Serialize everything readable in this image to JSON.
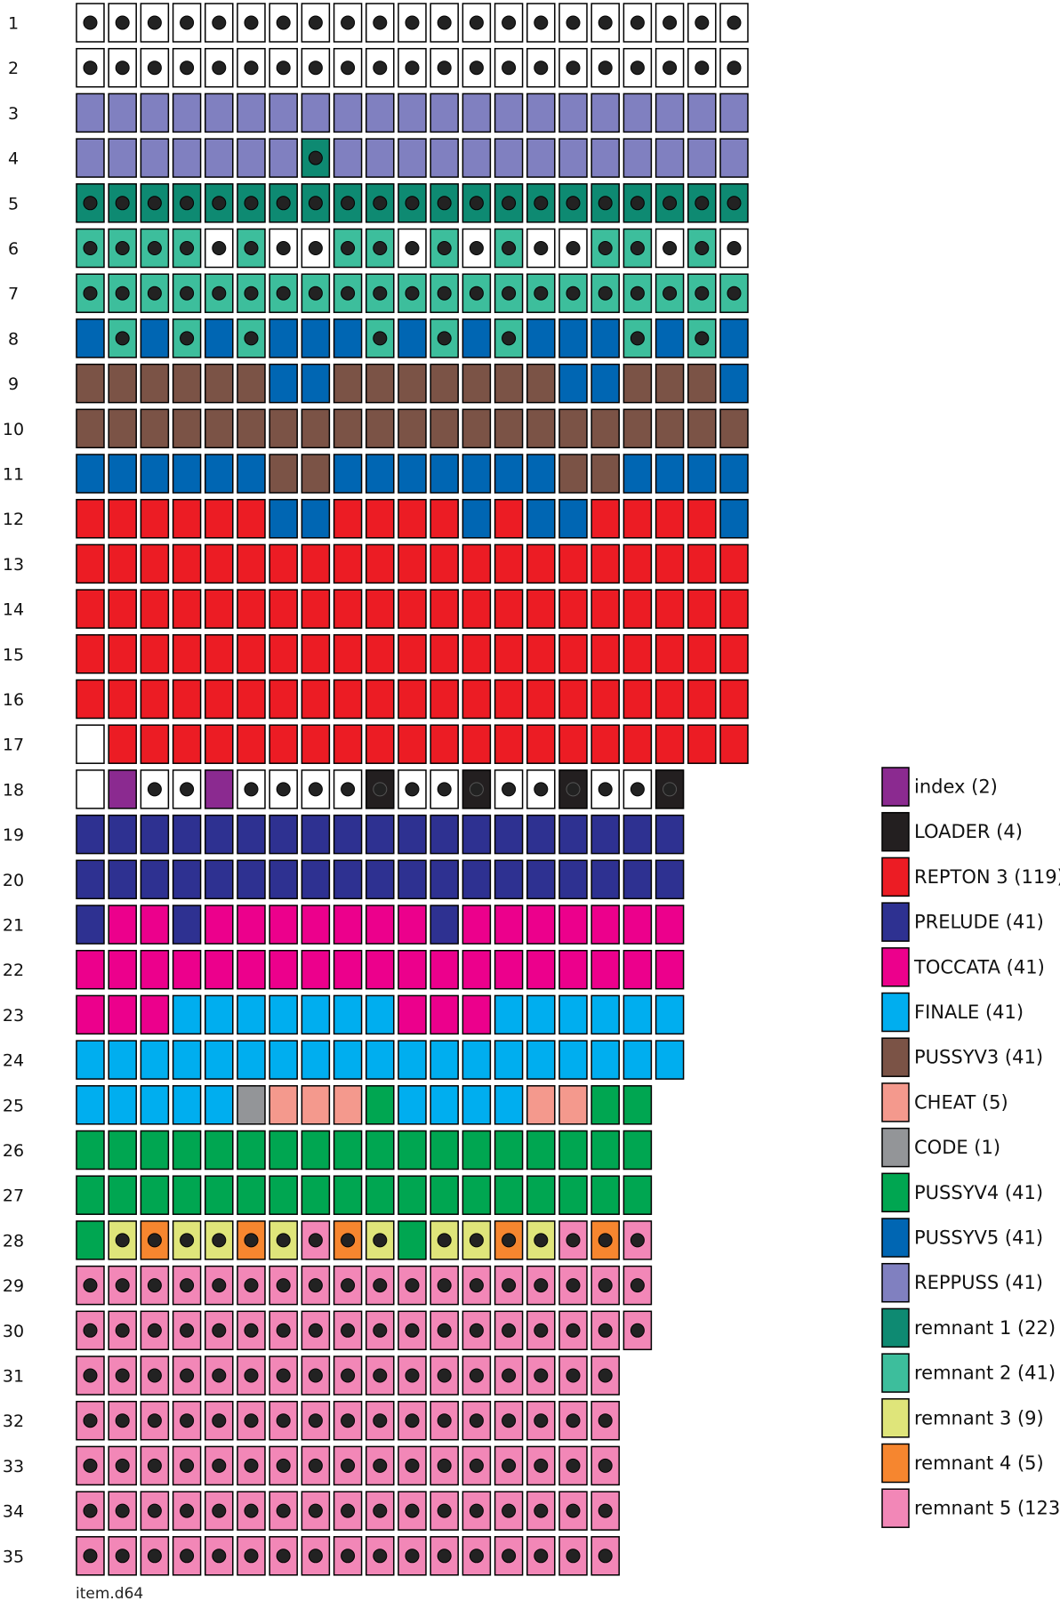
{
  "caption": "item.d64",
  "legend": [
    {
      "label": "index (2)",
      "color": "#8B2A90"
    },
    {
      "label": "LOADER (4)",
      "color": "#231F20"
    },
    {
      "label": "REPTON 3 (119)",
      "color": "#EC1C24"
    },
    {
      "label": "PRELUDE (41)",
      "color": "#2E3191"
    },
    {
      "label": "TOCCATA (41)",
      "color": "#EC008C"
    },
    {
      "label": "FINALE (41)",
      "color": "#00AEEF"
    },
    {
      "label": "PUSSYV3 (41)",
      "color": "#7B5346"
    },
    {
      "label": "CHEAT (5)",
      "color": "#F4998D"
    },
    {
      "label": "CODE (1)",
      "color": "#939598"
    },
    {
      "label": "PUSSYV4 (41)",
      "color": "#00A651"
    },
    {
      "label": "PUSSYV5 (41)",
      "color": "#0066B3"
    },
    {
      "label": "REPPUSS (41)",
      "color": "#8080C0"
    },
    {
      "label": "remnant 1 (22)",
      "color": "#0E8A72"
    },
    {
      "label": "remnant 2 (41)",
      "color": "#3DBE9C"
    },
    {
      "label": "remnant 3 (9)",
      "color": "#DFE57A"
    },
    {
      "label": "remnant 4 (5)",
      "color": "#F6862F"
    },
    {
      "label": "remnant 5 (123)",
      "color": "#F287B7"
    }
  ],
  "color_codes": {
    "W": "#FFFFFF",
    "i": "#8B2A90",
    "L": "#231F20",
    "R": "#EC1C24",
    "P": "#2E3191",
    "T": "#EC008C",
    "F": "#00AEEF",
    "3": "#7B5346",
    "C": "#F4998D",
    "D": "#939598",
    "4": "#00A651",
    "5": "#0066B3",
    "Q": "#8080C0",
    "a": "#0E8A72",
    "b": "#3DBE9C",
    "c": "#DFE57A",
    "d": "#F6862F",
    "e": "#F287B7"
  },
  "tracks": [
    {
      "track": "1",
      "sectors": "WWWWWWWWWWWWWWWWWWWWW",
      "dots": "111111111111111111111"
    },
    {
      "track": "2",
      "sectors": "WWWWWWWWWWWWWWWWWWWWW",
      "dots": "111111111111111111111"
    },
    {
      "track": "3",
      "sectors": "QQQQQQQQQQQQQQQQQQQQQ",
      "dots": "000000000000000000000"
    },
    {
      "track": "4",
      "sectors": "QQQQQQQaQQQQQQQQQQQQQ",
      "dots": "000000010000000000000"
    },
    {
      "track": "5",
      "sectors": "aaaaaaaaaaaaaaaaaaaaa",
      "dots": "111111111111111111111"
    },
    {
      "track": "6",
      "sectors": "bbbbWbWWbbWbWbWWbbWbW",
      "dots": "111111111111111111111"
    },
    {
      "track": "7",
      "sectors": "bbbbbbbbbbbbbbbbbbbbb",
      "dots": "111111111111111111111"
    },
    {
      "track": "8",
      "sectors": "5b5b5b555b5b5b555b5b5",
      "dots": "010101000101010001010"
    },
    {
      "track": "9",
      "sectors": "333333553333333553335",
      "dots": "000000000000000000000"
    },
    {
      "track": "10",
      "sectors": "333333333333333333333",
      "dots": "000000000000000000000"
    },
    {
      "track": "11",
      "sectors": "555555335555555335555",
      "dots": "000000000000000000000"
    },
    {
      "track": "12",
      "sectors": "RRRRRR55RRRR5R55RRRR5",
      "dots": "000000000000000000000"
    },
    {
      "track": "13",
      "sectors": "RRRRRRRRRRRRRRRRRRRRR",
      "dots": "000000000000000000000"
    },
    {
      "track": "14",
      "sectors": "RRRRRRRRRRRRRRRRRRRRR",
      "dots": "000000000000000000000"
    },
    {
      "track": "15",
      "sectors": "RRRRRRRRRRRRRRRRRRRRR",
      "dots": "000000000000000000000"
    },
    {
      "track": "16",
      "sectors": "RRRRRRRRRRRRRRRRRRRRR",
      "dots": "000000000000000000000"
    },
    {
      "track": "17",
      "sectors": "WRRRRRRRRRRRRRRRRRRRR",
      "dots": "000000000000000000000"
    },
    {
      "track": "18",
      "sectors": "WiWWiWWWWLWWLWWLWWL",
      "dots": "0011011112112112112"
    },
    {
      "track": "19",
      "sectors": "PPPPPPPPPPPPPPPPPPP",
      "dots": "0000000000000000000"
    },
    {
      "track": "20",
      "sectors": "PPPPPPPPPPPPPPPPPPP",
      "dots": "0000000000000000000"
    },
    {
      "track": "21",
      "sectors": "PTTPTTTTTTTPTTTTTTT",
      "dots": "0000000000000000000"
    },
    {
      "track": "22",
      "sectors": "TTTTTTTTTTTTTTTTTTT",
      "dots": "0000000000000000000"
    },
    {
      "track": "23",
      "sectors": "TTTFFFFFFFTTTFFFFFF",
      "dots": "0000000000000000000"
    },
    {
      "track": "24",
      "sectors": "FFFFFFFFFFFFFFFFFFF",
      "dots": "0000000000000000000"
    },
    {
      "track": "25",
      "sectors": "FFFFFDCCC4FFFFCC44",
      "dots": "000000000000000000"
    },
    {
      "track": "26",
      "sectors": "444444444444444444",
      "dots": "000000000000000000"
    },
    {
      "track": "27",
      "sectors": "444444444444444444",
      "dots": "000000000000000000"
    },
    {
      "track": "28",
      "sectors": "4cdccdcedc4ccdcede",
      "dots": "011111111101111111"
    },
    {
      "track": "29",
      "sectors": "eeeeeeeeeeeeeeeeee",
      "dots": "111111111111111111"
    },
    {
      "track": "30",
      "sectors": "eeeeeeeeeeeeeeeeee",
      "dots": "111111111111111111"
    },
    {
      "track": "31",
      "sectors": "eeeeeeeeeeeeeeeee",
      "dots": "11111111111111111"
    },
    {
      "track": "32",
      "sectors": "eeeeeeeeeeeeeeeee",
      "dots": "11111111111111111"
    },
    {
      "track": "33",
      "sectors": "eeeeeeeeeeeeeeeee",
      "dots": "11111111111111111"
    },
    {
      "track": "34",
      "sectors": "eeeeeeeeeeeeeeeee",
      "dots": "11111111111111111"
    },
    {
      "track": "35",
      "sectors": "eeeeeeeeeeeeeeeee",
      "dots": "11111111111111111"
    }
  ]
}
